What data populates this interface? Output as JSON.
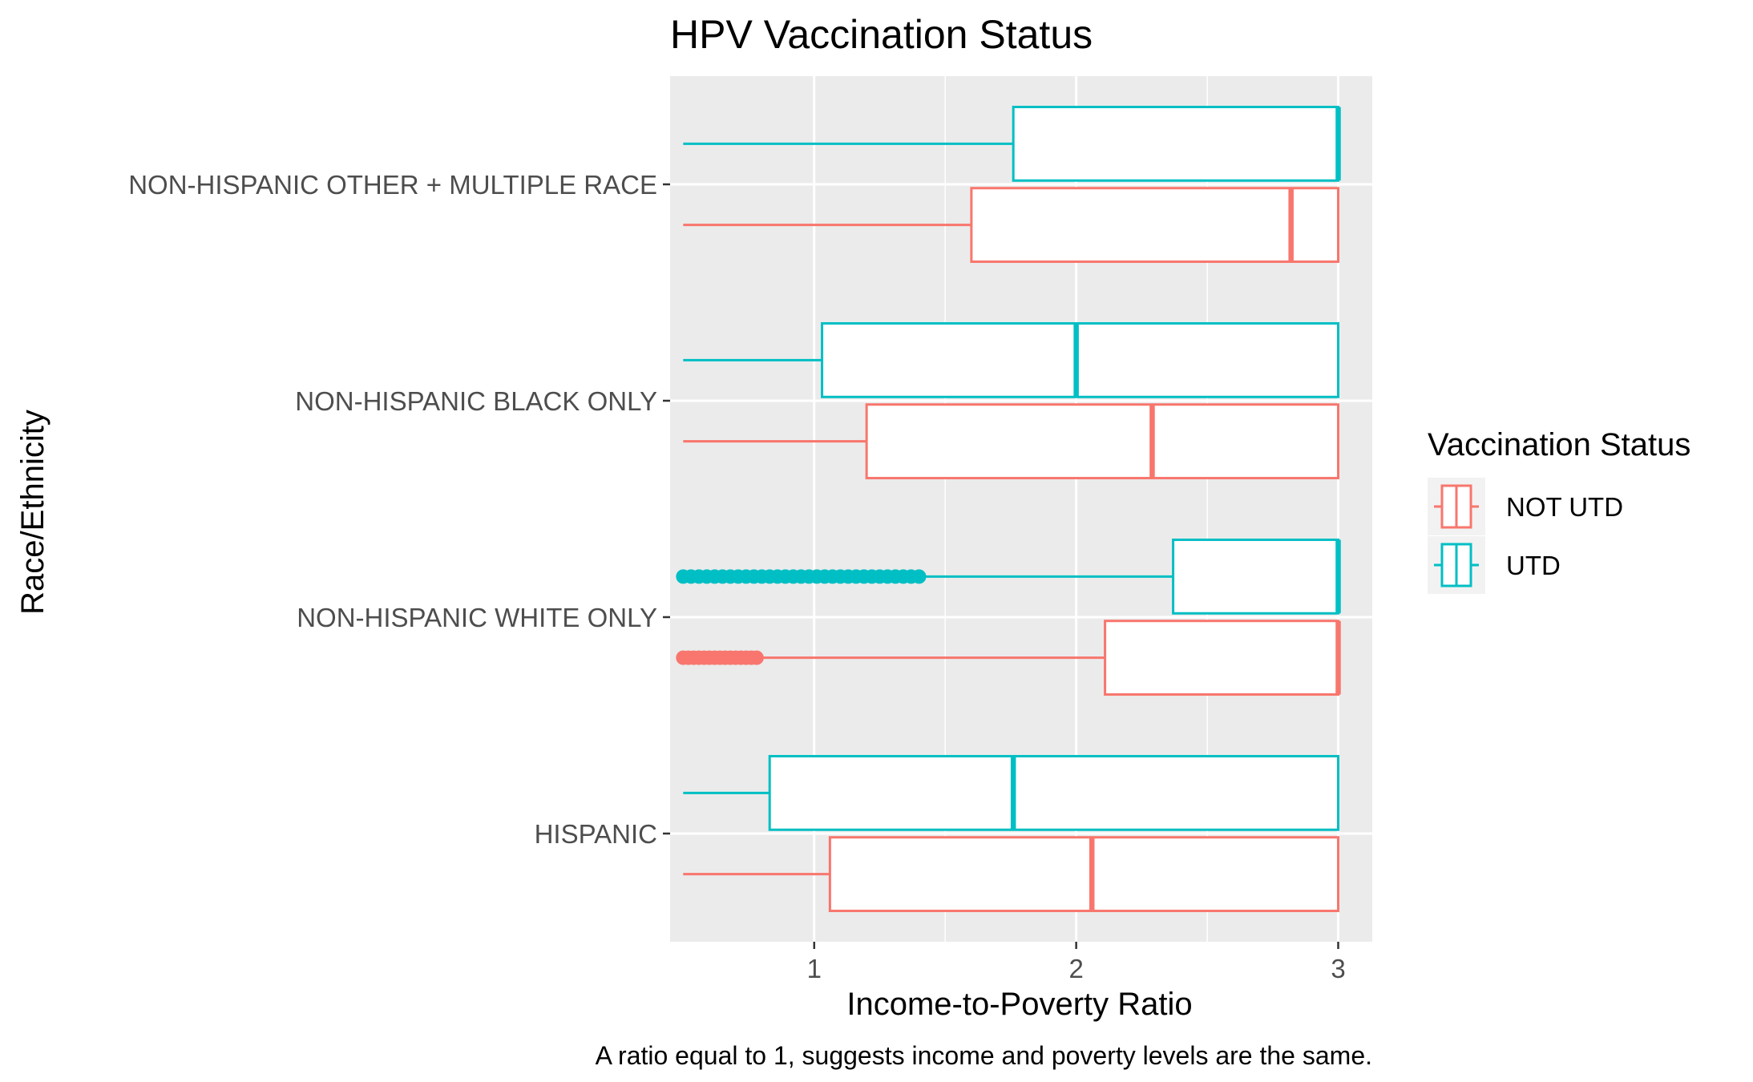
{
  "chart_data": {
    "type": "boxplot",
    "orientation": "horizontal",
    "title": "HPV Vaccination Status",
    "xlabel": "Income-to-Poverty Ratio",
    "ylabel": "Race/Ethnicity",
    "caption": "A ratio equal to 1, suggests income and poverty levels are the same.",
    "xlim": [
      0.45,
      3.13
    ],
    "x_ticks": [
      1,
      2,
      3
    ],
    "x_minor": [
      1.5,
      2.5
    ],
    "grid": true,
    "categories": [
      "HISPANIC",
      "NON-HISPANIC WHITE ONLY",
      "NON-HISPANIC BLACK ONLY",
      "NON-HISPANIC OTHER + MULTIPLE RACE"
    ],
    "legend": {
      "title": "Vaccination Status",
      "placement": "right",
      "entries": [
        "NOT UTD",
        "UTD"
      ]
    },
    "colors": {
      "NOT UTD": "#F8766D",
      "UTD": "#00BFC4"
    },
    "series": [
      {
        "name": "NOT UTD",
        "color": "#F8766D",
        "boxes": [
          {
            "category": "HISPANIC",
            "whisker_low": 0.5,
            "q1": 1.06,
            "median": 2.06,
            "q3": 3.0,
            "whisker_high": 3.0,
            "outliers": []
          },
          {
            "category": "NON-HISPANIC WHITE ONLY",
            "whisker_low": 0.8,
            "q1": 2.11,
            "median": 3.0,
            "q3": 3.0,
            "whisker_high": 3.0,
            "outliers": [
              0.5,
              0.52,
              0.54,
              0.56,
              0.58,
              0.6,
              0.62,
              0.64,
              0.66,
              0.68,
              0.7,
              0.72,
              0.74,
              0.76,
              0.78
            ]
          },
          {
            "category": "NON-HISPANIC BLACK ONLY",
            "whisker_low": 0.5,
            "q1": 1.2,
            "median": 2.29,
            "q3": 3.0,
            "whisker_high": 3.0,
            "outliers": []
          },
          {
            "category": "NON-HISPANIC OTHER + MULTIPLE RACE",
            "whisker_low": 0.5,
            "q1": 1.6,
            "median": 2.82,
            "q3": 3.0,
            "whisker_high": 3.0,
            "outliers": []
          }
        ]
      },
      {
        "name": "UTD",
        "color": "#00BFC4",
        "boxes": [
          {
            "category": "HISPANIC",
            "whisker_low": 0.5,
            "q1": 0.83,
            "median": 1.76,
            "q3": 3.0,
            "whisker_high": 3.0,
            "outliers": []
          },
          {
            "category": "NON-HISPANIC WHITE ONLY",
            "whisker_low": 1.42,
            "q1": 2.37,
            "median": 3.0,
            "q3": 3.0,
            "whisker_high": 3.0,
            "outliers": [
              0.5,
              0.53,
              0.56,
              0.59,
              0.62,
              0.65,
              0.68,
              0.71,
              0.74,
              0.77,
              0.8,
              0.83,
              0.86,
              0.89,
              0.92,
              0.95,
              0.98,
              1.01,
              1.04,
              1.07,
              1.1,
              1.13,
              1.16,
              1.19,
              1.22,
              1.25,
              1.28,
              1.31,
              1.34,
              1.37,
              1.4
            ]
          },
          {
            "category": "NON-HISPANIC BLACK ONLY",
            "whisker_low": 0.5,
            "q1": 1.03,
            "median": 2.0,
            "q3": 3.0,
            "whisker_high": 3.0,
            "outliers": []
          },
          {
            "category": "NON-HISPANIC OTHER + MULTIPLE RACE",
            "whisker_low": 0.5,
            "q1": 1.76,
            "median": 3.0,
            "q3": 3.0,
            "whisker_high": 3.0,
            "outliers": []
          }
        ]
      }
    ]
  }
}
